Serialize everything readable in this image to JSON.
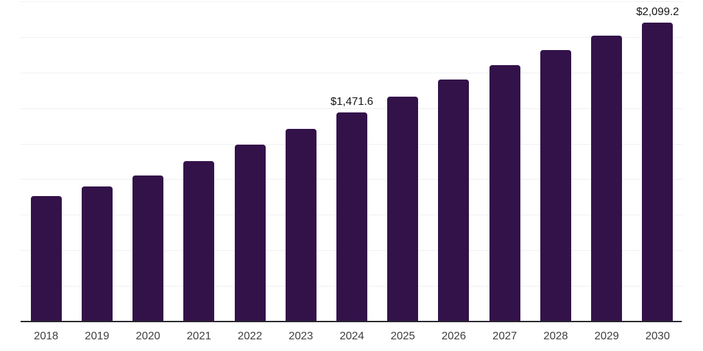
{
  "chart_data": {
    "type": "bar",
    "title": "",
    "xlabel": "",
    "ylabel": "",
    "categories": [
      "2018",
      "2019",
      "2020",
      "2021",
      "2022",
      "2023",
      "2024",
      "2025",
      "2026",
      "2027",
      "2028",
      "2029",
      "2030"
    ],
    "values": [
      880,
      948,
      1025,
      1130,
      1242,
      1355,
      1471.6,
      1581,
      1701,
      1804,
      1910,
      2011,
      2099.2
    ],
    "data_labels": {
      "2024": "$1,471.6",
      "2030": "$2,099.2"
    },
    "ylim": [
      0,
      2250
    ],
    "gridline_interval": 250,
    "grid": "horizontal",
    "legend_position": "none",
    "bar_color": "#33124a",
    "grid_color": "#f0f0f2",
    "axis_line_color": "#26242b",
    "data_label_color": "#141414",
    "tick_label_color": "#3d3d3d",
    "background_color": "#ffffff"
  }
}
